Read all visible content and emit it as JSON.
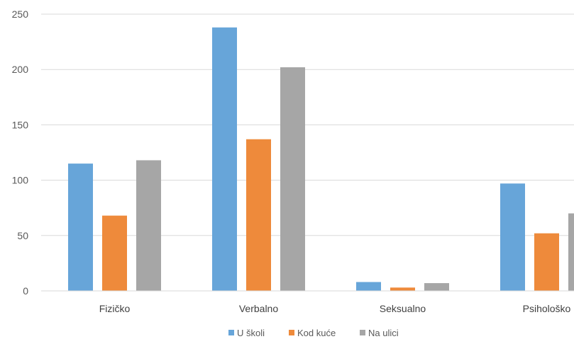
{
  "chart_data": {
    "type": "bar",
    "title": "",
    "xlabel": "",
    "ylabel": "",
    "categories": [
      "Fizičko",
      "Verbalno",
      "Seksualno",
      "Psihološko"
    ],
    "series": [
      {
        "name": "U školi",
        "color": "#67a5d9",
        "values": [
          115,
          238,
          8,
          97
        ]
      },
      {
        "name": "Kod kuće",
        "color": "#ee8a3b",
        "values": [
          68,
          137,
          3,
          52
        ]
      },
      {
        "name": "Na ulici",
        "color": "#a6a6a6",
        "values": [
          118,
          202,
          7,
          70
        ]
      }
    ],
    "yticks": [
      0,
      50,
      100,
      150,
      200,
      250
    ],
    "ylim": [
      0,
      250
    ],
    "grid": true,
    "legend": "bottom"
  }
}
